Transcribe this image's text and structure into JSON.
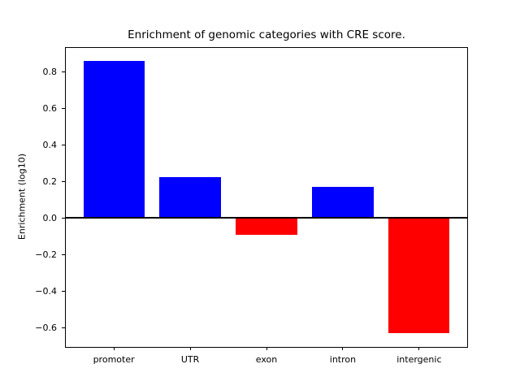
{
  "title": "Enrichment of genomic categories with CRE score.",
  "chart_data": {
    "type": "bar",
    "title": "Enrichment of genomic categories with CRE score.",
    "xlabel": "",
    "ylabel": "Enrichment (log10)",
    "categories": [
      "promoter",
      "UTR",
      "exon",
      "intron",
      "intergenic"
    ],
    "values": [
      0.86,
      0.225,
      -0.09,
      0.17,
      -0.63
    ],
    "bar_colors": [
      "#0000ff",
      "#0000ff",
      "#ff0000",
      "#0000ff",
      "#ff0000"
    ],
    "positive_color": "#0000ff",
    "negative_color": "#ff0000",
    "ylim": [
      -0.705,
      0.935
    ],
    "xlim": [
      -0.64,
      4.64
    ],
    "yticks": [
      0.8,
      0.6,
      0.4,
      0.2,
      0.0,
      -0.2,
      -0.4,
      -0.6
    ],
    "ytick_labels": [
      "0.8",
      "0.6",
      "0.4",
      "0.2",
      "0.0",
      "−0.2",
      "−0.4",
      "−0.6"
    ],
    "bar_width_fraction": 0.8,
    "zero_line": true,
    "grid": false,
    "legend": null,
    "frame_color": "#000000",
    "background_color": "#ffffff"
  }
}
